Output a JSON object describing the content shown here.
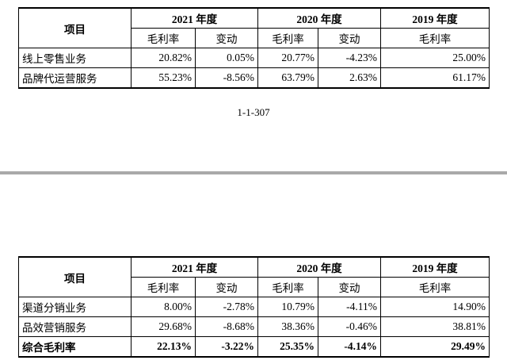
{
  "table1": {
    "header": {
      "item": "项目",
      "y2021": "2021 年度",
      "y2020": "2020 年度",
      "y2019": "2019 年度",
      "gm": "毛利率",
      "chg": "变动"
    },
    "rows": [
      {
        "name": "线上零售业务",
        "gm2021": "20.82%",
        "chg2021": "0.05%",
        "gm2020": "20.77%",
        "chg2020": "-4.23%",
        "gm2019": "25.00%"
      },
      {
        "name": "品牌代运营服务",
        "gm2021": "55.23%",
        "chg2021": "-8.56%",
        "gm2020": "63.79%",
        "chg2020": "2.63%",
        "gm2019": "61.17%"
      }
    ]
  },
  "page_number": "1-1-307",
  "table2": {
    "header": {
      "item": "项目",
      "y2021": "2021 年度",
      "y2020": "2020 年度",
      "y2019": "2019 年度",
      "gm": "毛利率",
      "chg": "变动"
    },
    "rows": [
      {
        "name": "渠道分销业务",
        "gm2021": "8.00%",
        "chg2021": "-2.78%",
        "gm2020": "10.79%",
        "chg2020": "-4.11%",
        "gm2019": "14.90%"
      },
      {
        "name": "品效营销服务",
        "gm2021": "29.68%",
        "chg2021": "-8.68%",
        "gm2020": "38.36%",
        "chg2020": "-0.46%",
        "gm2019": "38.81%"
      },
      {
        "name": "综合毛利率",
        "gm2021": "22.13%",
        "chg2021": "-3.22%",
        "gm2020": "25.35%",
        "chg2020": "-4.14%",
        "gm2019": "29.49%"
      }
    ]
  }
}
